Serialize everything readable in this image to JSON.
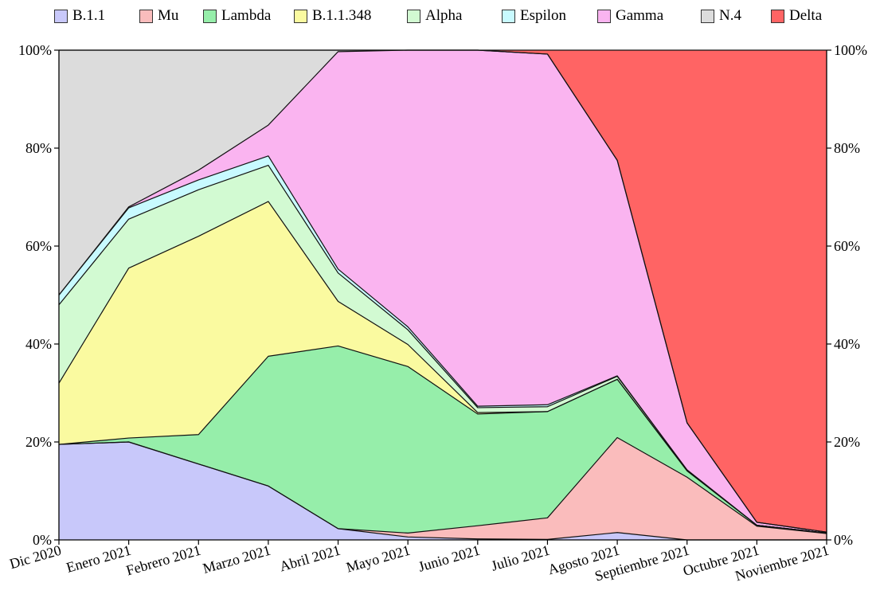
{
  "chart_data": {
    "type": "area",
    "stacked": true,
    "title": "",
    "xlabel": "",
    "ylabel": "",
    "ylim": [
      0,
      100
    ],
    "categories": [
      "Dic 2020",
      "Enero 2021",
      "Febrero 2021",
      "Marzo 2021",
      "Abril 2021",
      "Mayo 2021",
      "Junio 2021",
      "Julio 2021",
      "Agosto 2021",
      "Septiembre 2021",
      "Octubre 2021",
      "Noviembre 2021"
    ],
    "y_ticks": [
      "0%",
      "20%",
      "40%",
      "60%",
      "80%",
      "100%"
    ],
    "legend_position": "top",
    "series": [
      {
        "name": "B.1.1",
        "color": "#c8c8fa",
        "values": [
          19.5,
          20.0,
          15.5,
          11.0,
          2.3,
          0.6,
          0.2,
          0.1,
          1.5,
          0.0,
          0.0,
          0.0
        ]
      },
      {
        "name": "Mu",
        "color": "#fabcbc",
        "values": [
          0.0,
          0.0,
          0.0,
          0.0,
          0.0,
          0.8,
          2.7,
          4.4,
          19.4,
          12.8,
          2.8,
          1.3
        ]
      },
      {
        "name": "Lambda",
        "color": "#96eeaa",
        "values": [
          0.0,
          0.8,
          6.0,
          26.5,
          37.3,
          34.0,
          22.8,
          21.7,
          11.9,
          1.3,
          0.2,
          0.1
        ]
      },
      {
        "name": "B.1.1.348",
        "color": "#fafaa0",
        "values": [
          12.5,
          34.7,
          40.5,
          31.6,
          9.1,
          4.5,
          0.3,
          0.0,
          0.0,
          0.0,
          0.0,
          0.0
        ]
      },
      {
        "name": "Alpha",
        "color": "#d2fad2",
        "values": [
          16.0,
          10.0,
          9.5,
          7.4,
          5.8,
          3.0,
          1.0,
          1.0,
          0.6,
          0.2,
          0.0,
          0.0
        ]
      },
      {
        "name": "Espilon",
        "color": "#c8faff",
        "values": [
          2.0,
          2.3,
          2.0,
          1.9,
          0.8,
          0.6,
          0.3,
          0.4,
          0.1,
          0.0,
          0.0,
          0.0
        ]
      },
      {
        "name": "Gamma",
        "color": "#fab4f0",
        "values": [
          0.0,
          0.2,
          2.0,
          6.3,
          44.4,
          56.5,
          72.7,
          71.6,
          44.0,
          9.6,
          0.6,
          0.2
        ]
      },
      {
        "name": "N.4",
        "color": "#dcdcdc",
        "values": [
          50.0,
          32.0,
          24.5,
          15.3,
          0.3,
          0.0,
          0.0,
          0.0,
          0.0,
          0.0,
          0.0,
          0.0
        ]
      },
      {
        "name": "Delta",
        "color": "#ff6464",
        "values": [
          0.0,
          0.0,
          0.0,
          0.0,
          0.0,
          0.0,
          0.0,
          0.8,
          22.5,
          76.1,
          96.4,
          98.4
        ]
      }
    ]
  }
}
